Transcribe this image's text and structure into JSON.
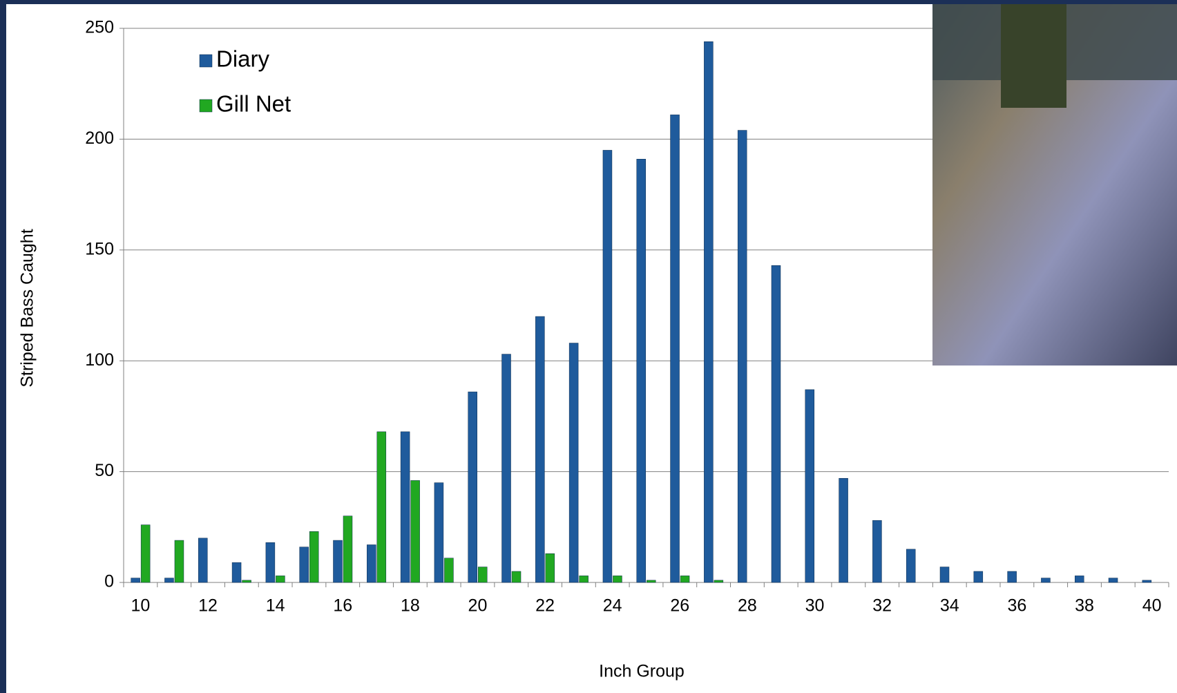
{
  "chart_data": {
    "type": "bar",
    "xlabel": "Inch Group",
    "ylabel": "Striped Bass Caught",
    "categories": [
      "10",
      null,
      "12",
      null,
      "14",
      null,
      "16",
      null,
      "18",
      null,
      "20",
      null,
      "22",
      null,
      "24",
      null,
      "26",
      null,
      "28",
      null,
      "30",
      null,
      "32",
      null,
      "34",
      null,
      "36",
      null,
      "38",
      null,
      "40"
    ],
    "series": [
      {
        "name": "Diary",
        "color": "#1f5b9c",
        "values": [
          2,
          2,
          20,
          9,
          18,
          16,
          19,
          17,
          68,
          45,
          86,
          103,
          120,
          108,
          195,
          191,
          211,
          244,
          204,
          143,
          87,
          47,
          28,
          15,
          7,
          5,
          5,
          2,
          3,
          2,
          1
        ]
      },
      {
        "name": "Gill Net",
        "color": "#21a821",
        "values": [
          26,
          19,
          0,
          1,
          3,
          23,
          30,
          68,
          46,
          11,
          7,
          5,
          13,
          3,
          3,
          1,
          3,
          1,
          0,
          0,
          0,
          0,
          0,
          0,
          0,
          0,
          0,
          0,
          0,
          0,
          0
        ]
      }
    ],
    "ylim": [
      0,
      250
    ],
    "yticks": [
      0,
      50,
      100,
      150,
      200,
      250
    ],
    "grid": true,
    "legend": "top-left"
  }
}
